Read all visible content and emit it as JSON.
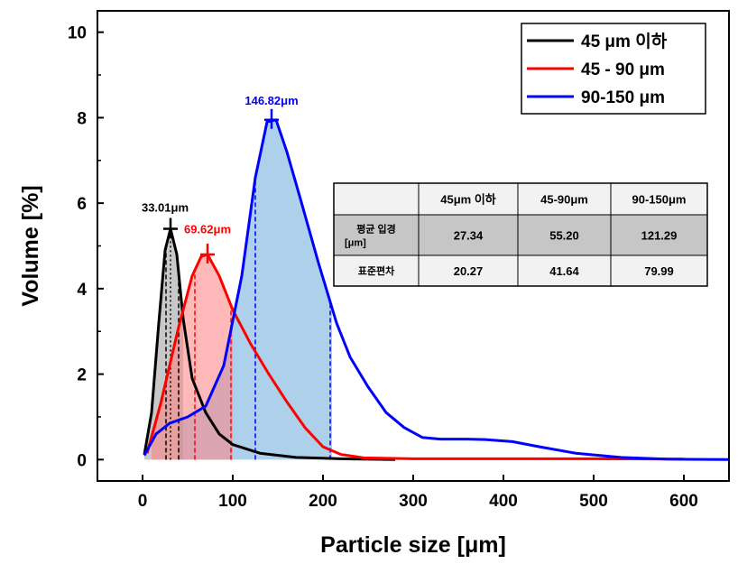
{
  "chart_data": {
    "type": "area",
    "xlabel": "Particle size [μm]",
    "ylabel": "Volume [%]",
    "xlim": [
      -50,
      650
    ],
    "ylim": [
      -0.5,
      10.5
    ],
    "xticks": [
      0,
      100,
      200,
      300,
      400,
      500,
      600
    ],
    "yticks": [
      0,
      2,
      4,
      6,
      8,
      10
    ],
    "legend_position": "top-right",
    "series": [
      {
        "name": "45 μm 이하",
        "color": "#000000",
        "fill": "#9a9a9a",
        "points": [
          [
            2,
            0.12
          ],
          [
            10,
            1.1
          ],
          [
            18,
            3.2
          ],
          [
            25,
            4.9
          ],
          [
            31,
            5.4
          ],
          [
            38,
            4.8
          ],
          [
            45,
            3.3
          ],
          [
            55,
            1.9
          ],
          [
            70,
            1.1
          ],
          [
            85,
            0.6
          ],
          [
            100,
            0.35
          ],
          [
            130,
            0.15
          ],
          [
            170,
            0.05
          ],
          [
            220,
            0.02
          ],
          [
            280,
            0.0
          ]
        ],
        "shade_from": 2,
        "shade_to": 45
      },
      {
        "name": "45 - 90 μm",
        "color": "#ff0000",
        "fill": "#ff8080",
        "points": [
          [
            5,
            0.15
          ],
          [
            20,
            1.3
          ],
          [
            40,
            3.1
          ],
          [
            55,
            4.3
          ],
          [
            65,
            4.75
          ],
          [
            72,
            4.8
          ],
          [
            85,
            4.3
          ],
          [
            100,
            3.5
          ],
          [
            120,
            2.7
          ],
          [
            140,
            2.0
          ],
          [
            160,
            1.35
          ],
          [
            180,
            0.75
          ],
          [
            200,
            0.3
          ],
          [
            220,
            0.12
          ],
          [
            245,
            0.04
          ],
          [
            300,
            0.02
          ],
          [
            400,
            0.02
          ],
          [
            500,
            0.02
          ],
          [
            600,
            0.01
          ]
        ],
        "shade_from": 10,
        "shade_to": 100
      },
      {
        "name": "90-150 μm",
        "color": "#0000ff",
        "fill": "#6aaadb",
        "points": [
          [
            2,
            0.1
          ],
          [
            15,
            0.6
          ],
          [
            30,
            0.85
          ],
          [
            50,
            1.0
          ],
          [
            70,
            1.25
          ],
          [
            90,
            2.2
          ],
          [
            110,
            4.3
          ],
          [
            125,
            6.6
          ],
          [
            138,
            7.9
          ],
          [
            148,
            7.95
          ],
          [
            160,
            7.2
          ],
          [
            175,
            6.1
          ],
          [
            195,
            4.6
          ],
          [
            215,
            3.2
          ],
          [
            230,
            2.4
          ],
          [
            250,
            1.7
          ],
          [
            270,
            1.1
          ],
          [
            290,
            0.75
          ],
          [
            310,
            0.52
          ],
          [
            330,
            0.48
          ],
          [
            360,
            0.48
          ],
          [
            380,
            0.47
          ],
          [
            410,
            0.42
          ],
          [
            440,
            0.3
          ],
          [
            480,
            0.15
          ],
          [
            530,
            0.05
          ],
          [
            580,
            0.01
          ],
          [
            650,
            0.0
          ]
        ],
        "shade_from": 40,
        "shade_to": 210
      }
    ],
    "markers": [
      {
        "series": 0,
        "x": 31,
        "y": 5.4
      },
      {
        "series": 1,
        "x": 72,
        "y": 4.8
      },
      {
        "series": 2,
        "x": 143,
        "y": 7.95
      }
    ],
    "dashed_lines": [
      {
        "series": 0,
        "x": [
          26,
          40
        ]
      },
      {
        "series": 1,
        "x": [
          58,
          98
        ]
      },
      {
        "series": 2,
        "x": [
          125,
          208
        ]
      }
    ],
    "annotations": [
      {
        "text": "33.01μm",
        "x": 25,
        "y": 5.8,
        "color": "#000000"
      },
      {
        "text": "69.62μm",
        "x": 72,
        "y": 5.3,
        "color": "#ff0000"
      },
      {
        "text": "146.82μm",
        "x": 143,
        "y": 8.3,
        "color": "#0000ff"
      }
    ],
    "table": {
      "headers": [
        "",
        "45μm 이하",
        "45-90μm",
        "90-150μm"
      ],
      "rows": [
        {
          "label_line1": "평균 입경",
          "label_line2": "[μm]",
          "values": [
            "27.34",
            "55.20",
            "121.29"
          ]
        },
        {
          "label_line1": "표준편차",
          "label_line2": "",
          "values": [
            "20.27",
            "41.64",
            "79.99"
          ]
        }
      ]
    }
  }
}
